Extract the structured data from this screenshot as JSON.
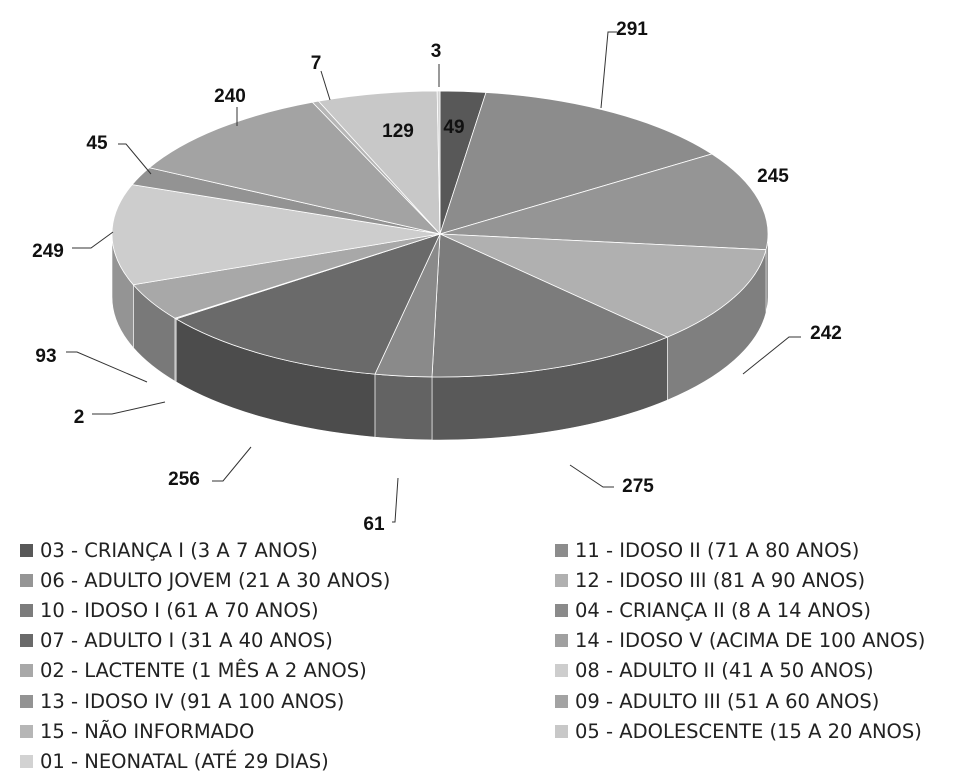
{
  "chart_data": {
    "type": "pie",
    "style": "3d",
    "title": "",
    "slices": [
      {
        "category": "03 - CRIANÇA I (3 A 7 ANOS)",
        "value": 49,
        "label": "49",
        "color": "#585858"
      },
      {
        "category": "11 - IDOSO II (71 A 80 ANOS)",
        "value": 291,
        "label": "291",
        "color": "#8c8c8c"
      },
      {
        "category": "06 - ADULTO JOVEM (21 A 30 ANOS)",
        "value": 245,
        "label": "245",
        "color": "#959595"
      },
      {
        "category": "12 - IDOSO III (81 A 90 ANOS)",
        "value": 242,
        "label": "242",
        "color": "#b0b0b0"
      },
      {
        "category": "10 - IDOSO I (61 A 70 ANOS)",
        "value": 275,
        "label": "275",
        "color": "#7c7c7c"
      },
      {
        "category": "04 - CRIANÇA II (8 A 14 ANOS)",
        "value": 61,
        "label": "61",
        "color": "#8a8a8a"
      },
      {
        "category": "07 - ADULTO I (31 A 40 ANOS)",
        "value": 256,
        "label": "256",
        "color": "#6a6a6a"
      },
      {
        "category": "14 - IDOSO V (ACIMA DE 100 ANOS)",
        "value": 2,
        "label": "2",
        "color": "#a0a0a0"
      },
      {
        "category": "02 - LACTENTE (1 MÊS A 2 ANOS)",
        "value": 93,
        "label": "93",
        "color": "#a8a8a8"
      },
      {
        "category": "08 - ADULTO II (41 A 50 ANOS)",
        "value": 249,
        "label": "249",
        "color": "#cdcdcd"
      },
      {
        "category": "13 - IDOSO IV (91 A 100 ANOS)",
        "value": 45,
        "label": "45",
        "color": "#939393"
      },
      {
        "category": "09 - ADULTO III (51 A 60 ANOS)",
        "value": 240,
        "label": "240",
        "color": "#a3a3a3"
      },
      {
        "category": "15 - NÃO INFORMADO",
        "value": 7,
        "label": "7",
        "color": "#b6b6b6"
      },
      {
        "category": "05 - ADOLESCENTE (15 A 20 ANOS)",
        "value": 129,
        "label": "129",
        "color": "#c8c8c8"
      },
      {
        "category": "01 - NEONATAL (ATÉ 29 DIAS)",
        "value": 3,
        "label": "3",
        "color": "#d2d2d2"
      }
    ],
    "legend": {
      "placement": "bottom",
      "columns": [
        [
          {
            "text": "03 - CRIANÇA I (3 A 7 ANOS)",
            "color": "#585858"
          },
          {
            "text": "06 - ADULTO JOVEM (21 A 30 ANOS)",
            "color": "#959595"
          },
          {
            "text": "10 - IDOSO I (61 A 70 ANOS)",
            "color": "#7c7c7c"
          },
          {
            "text": "07 - ADULTO I (31 A 40 ANOS)",
            "color": "#6a6a6a"
          },
          {
            "text": "02 - LACTENTE (1 MÊS A 2 ANOS)",
            "color": "#a8a8a8"
          },
          {
            "text": "13 - IDOSO IV (91 A 100 ANOS)",
            "color": "#939393"
          },
          {
            "text": "15 - NÃO INFORMADO",
            "color": "#b6b6b6"
          },
          {
            "text": "01 - NEONATAL (ATÉ 29 DIAS)",
            "color": "#d2d2d2"
          }
        ],
        [
          {
            "text": "11 - IDOSO II (71 A 80 ANOS)",
            "color": "#8c8c8c"
          },
          {
            "text": "12 - IDOSO III (81 A 90 ANOS)",
            "color": "#b0b0b0"
          },
          {
            "text": "04 - CRIANÇA II (8 A 14 ANOS)",
            "color": "#8a8a8a"
          },
          {
            "text": "14 - IDOSO V (ACIMA DE 100 ANOS)",
            "color": "#a0a0a0"
          },
          {
            "text": "08 - ADULTO II (41 A 50 ANOS)",
            "color": "#cdcdcd"
          },
          {
            "text": "09 - ADULTO III (51 A 60 ANOS)",
            "color": "#a3a3a3"
          },
          {
            "text": "05 - ADOLESCENTE (15 A 20 ANOS)",
            "color": "#c8c8c8"
          }
        ]
      ]
    }
  }
}
